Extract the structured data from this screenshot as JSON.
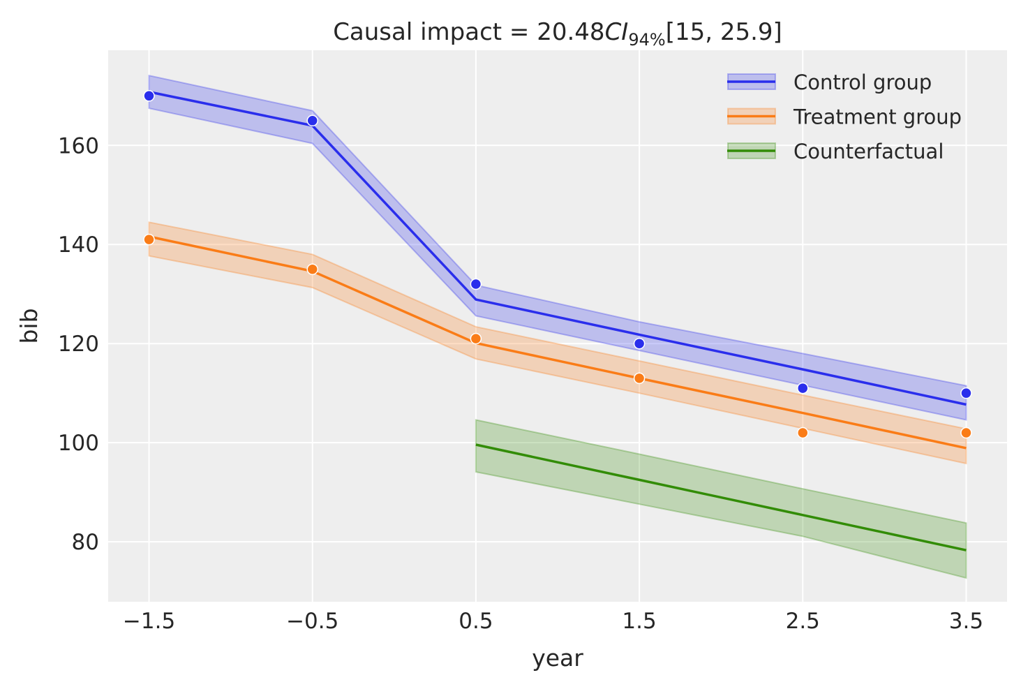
{
  "chart_data": {
    "type": "line",
    "title": {
      "prefix": "Causal impact = 20.48",
      "ci": "CI",
      "ci_sub": "94%",
      "suffix": "[15, 25.9]"
    },
    "xlabel": "year",
    "ylabel": "bib",
    "xlim": [
      -1.75,
      3.75
    ],
    "ylim": [
      67.9,
      179.2
    ],
    "xticks": [
      -1.5,
      -0.5,
      0.5,
      1.5,
      2.5,
      3.5
    ],
    "xtick_labels": [
      "−1.5",
      "−0.5",
      "0.5",
      "1.5",
      "2.5",
      "3.5"
    ],
    "yticks": [
      80,
      100,
      120,
      140,
      160
    ],
    "ytick_labels": [
      "80",
      "100",
      "120",
      "140",
      "160"
    ],
    "grid": true,
    "legend_position": "top-right",
    "series": [
      {
        "name": "Control group",
        "color": "#2a2eec",
        "x": [
          -1.5,
          -0.5,
          0.5,
          1.5,
          2.5,
          3.5
        ],
        "line": [
          170.8,
          164.0,
          128.9,
          121.8,
          114.8,
          107.7
        ],
        "band_upper": [
          174.1,
          167.0,
          131.8,
          124.4,
          118.0,
          111.5
        ],
        "band_lower": [
          167.5,
          160.4,
          125.6,
          118.6,
          111.6,
          104.6
        ],
        "observed": [
          170,
          165,
          132,
          120,
          111,
          110
        ]
      },
      {
        "name": "Treatment group",
        "color": "#fa7c17",
        "x": [
          -1.5,
          -0.5,
          0.5,
          1.5,
          2.5,
          3.5
        ],
        "line": [
          141.6,
          134.6,
          120.1,
          113.0,
          106.0,
          98.9
        ],
        "band_upper": [
          144.5,
          138.0,
          123.4,
          116.5,
          109.6,
          102.8
        ],
        "band_lower": [
          137.7,
          131.3,
          116.9,
          110.0,
          102.9,
          95.8
        ],
        "observed": [
          141,
          135,
          121,
          113,
          102,
          102
        ]
      },
      {
        "name": "Counterfactual",
        "color": "#328c06",
        "x": [
          0.5,
          1.5,
          2.5,
          3.5
        ],
        "line": [
          99.6,
          92.5,
          85.4,
          78.3
        ],
        "band_upper": [
          104.6,
          97.7,
          90.7,
          83.8
        ],
        "band_lower": [
          94.1,
          87.6,
          81.1,
          72.7
        ],
        "observed": []
      }
    ]
  }
}
